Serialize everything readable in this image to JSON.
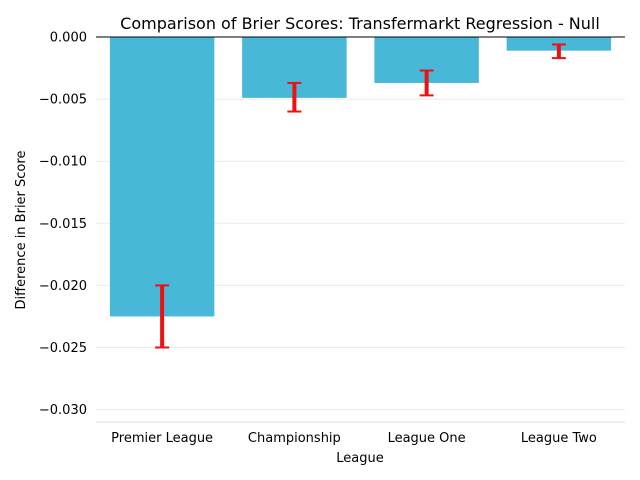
{
  "chart_data": {
    "type": "bar",
    "title": "Comparison of Brier Scores: Transfermarkt Regression - Null",
    "xlabel": "League",
    "ylabel": "Difference in Brier Score",
    "categories": [
      "Premier League",
      "Championship",
      "League One",
      "League Two"
    ],
    "values": [
      -0.0225,
      -0.0049,
      -0.0037,
      -0.0011
    ],
    "error_low": [
      -0.025,
      -0.006,
      -0.0047,
      -0.0017
    ],
    "error_high": [
      -0.02,
      -0.0037,
      -0.0027,
      -0.0006
    ],
    "ylim": [
      -0.031,
      0.0
    ],
    "yticks": [
      "0.000",
      "−0.005",
      "−0.010",
      "−0.015",
      "−0.020",
      "−0.025",
      "−0.030"
    ],
    "ytick_values": [
      0.0,
      -0.005,
      -0.01,
      -0.015,
      -0.02,
      -0.025,
      -0.03
    ],
    "grid": true,
    "bar_color": "#48b8d8",
    "error_color": "#ee1111",
    "grid_color": "#ebebeb"
  }
}
